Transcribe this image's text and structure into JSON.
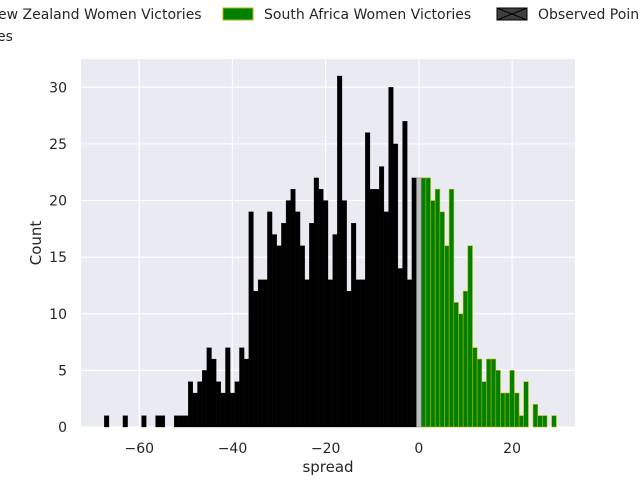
{
  "chart_data": {
    "type": "bar",
    "xlabel": "spread",
    "ylabel": "Count",
    "xlim": [
      -72.5,
      33.5
    ],
    "ylim": [
      0,
      32.5
    ],
    "x_ticks": [
      -60,
      -40,
      -20,
      0,
      20
    ],
    "x_tick_labels": [
      "−60",
      "−40",
      "−20",
      "0",
      "20"
    ],
    "y_ticks": [
      0,
      5,
      10,
      15,
      20,
      25,
      30
    ],
    "y_tick_labels": [
      "0",
      "5",
      "10",
      "15",
      "20",
      "25",
      "30"
    ],
    "grid": true,
    "background": "#eaeaf2",
    "legend": {
      "placement": "top, above plot (clipped at left)",
      "entries": [
        {
          "label": "New Zealand Women Victories",
          "visible_text": "ew Zealand Women Victories",
          "color": "#000000"
        },
        {
          "label": "South Africa Women Victories",
          "visible_text": "South Africa Women Victories",
          "color": "#008000",
          "edge": "#b5b500"
        },
        {
          "label": "Observed Point",
          "visible_text": "Observed Poin",
          "color": "#404040"
        }
      ],
      "second_row_fragment": "es"
    },
    "series": [
      {
        "name": "New Zealand Women Victories",
        "color": "#000000",
        "x": [
          -67,
          -63,
          -59,
          -56,
          -55,
          -52,
          -51,
          -50,
          -49,
          -48,
          -47,
          -46,
          -45,
          -44,
          -43,
          -42,
          -41,
          -40,
          -39,
          -38,
          -37,
          -36,
          -35,
          -34,
          -33,
          -32,
          -31,
          -30,
          -29,
          -28,
          -27,
          -26,
          -25,
          -24,
          -23,
          -22,
          -21,
          -20,
          -19,
          -18,
          -17,
          -16,
          -15,
          -14,
          -13,
          -12,
          -11,
          -10,
          -9,
          -8,
          -7,
          -6,
          -5,
          -4,
          -3,
          -2,
          -1
        ],
        "values": [
          1,
          1,
          1,
          1,
          1,
          1,
          1,
          1,
          4,
          3,
          4,
          5,
          7,
          6,
          4,
          3,
          7,
          3,
          4,
          7,
          6,
          19,
          12,
          13,
          13,
          19,
          17,
          16,
          18,
          20,
          21,
          19,
          16,
          13,
          18,
          22,
          21,
          20,
          13,
          17,
          31,
          20,
          12,
          18,
          13,
          13,
          26,
          21,
          21,
          23,
          19,
          30,
          25,
          14,
          27,
          13,
          22
        ]
      },
      {
        "name": "South Africa Women Victories",
        "color": "#008000",
        "x": [
          1,
          2,
          3,
          4,
          5,
          6,
          7,
          8,
          9,
          10,
          11,
          12,
          13,
          14,
          15,
          16,
          17,
          18,
          19,
          20,
          21,
          22,
          23,
          25,
          26,
          27,
          29
        ],
        "values": [
          22,
          22,
          20,
          21,
          19,
          16,
          21,
          11,
          10,
          12,
          16,
          7,
          6,
          4,
          6,
          6,
          5,
          3,
          3,
          5,
          3,
          1,
          4,
          2,
          1,
          1,
          1
        ]
      },
      {
        "name": "Observed Point",
        "color": "#bdbdbd",
        "x": [
          0
        ],
        "values": [
          22
        ]
      }
    ]
  }
}
